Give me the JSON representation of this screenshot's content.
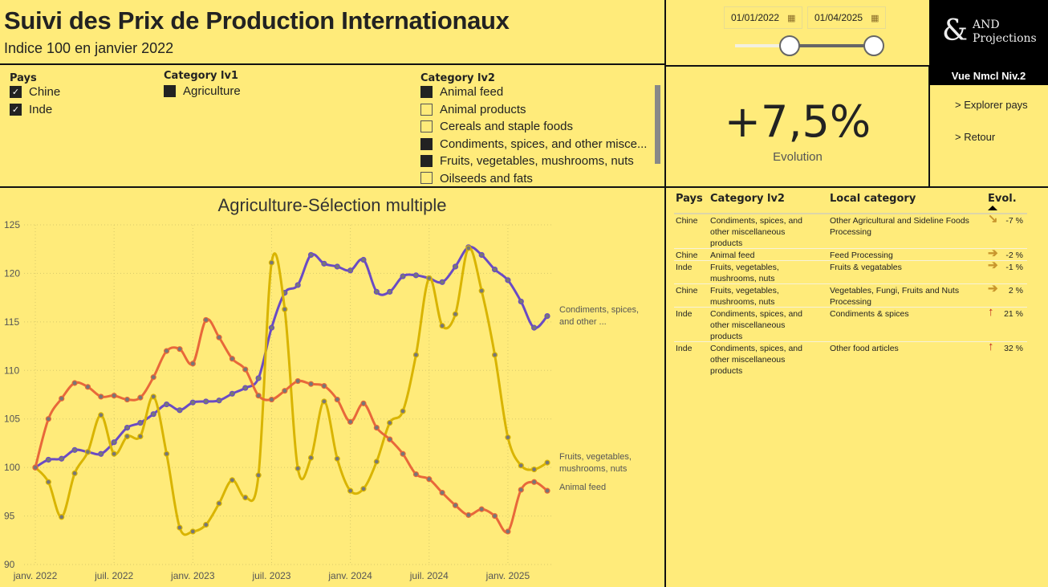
{
  "header": {
    "title": "Suivi des Prix de Production Internationaux",
    "subtitle": "Indice 100 en janvier 2022"
  },
  "filters": {
    "pays": {
      "label": "Pays",
      "items": [
        {
          "label": "Chine",
          "checked": true
        },
        {
          "label": "Inde",
          "checked": true
        }
      ]
    },
    "cat1": {
      "label": "Category lv1",
      "items": [
        {
          "label": "Agriculture",
          "checked": true
        }
      ]
    },
    "cat2": {
      "label": "Category lv2",
      "items": [
        {
          "label": "Animal feed",
          "checked": true
        },
        {
          "label": "Animal products",
          "checked": false
        },
        {
          "label": "Cereals and staple foods",
          "checked": false
        },
        {
          "label": "Condiments, spices, and other misce...",
          "checked": true
        },
        {
          "label": "Fruits, vegetables, mushrooms, nuts",
          "checked": true
        },
        {
          "label": "Oilseeds and fats",
          "checked": false
        }
      ]
    }
  },
  "dates": {
    "start": "01/01/2022",
    "end": "01/04/2025"
  },
  "logo": {
    "symbol": "&",
    "line1": "AND",
    "line2": "Projections"
  },
  "nav": {
    "title": "Vue Nmcl Niv.2",
    "explore": "> Explorer pays",
    "back": "> Retour"
  },
  "kpi": {
    "value": "+7,5%",
    "label": "Evolution"
  },
  "table": {
    "headers": {
      "pays": "Pays",
      "cat": "Category lv2",
      "local": "Local category",
      "evol": "Evol."
    },
    "rows": [
      {
        "pays": "Chine",
        "cat": "Condiments, spices, and other miscellaneous products",
        "local": "Other Agricultural and Sideline Foods Processing",
        "evol": "-7 %",
        "arrow": "down-right"
      },
      {
        "pays": "Chine",
        "cat": "Animal feed",
        "local": "Feed Processing",
        "evol": "-2 %",
        "arrow": "right"
      },
      {
        "pays": "Inde",
        "cat": "Fruits, vegetables, mushrooms, nuts",
        "local": "Fruits & vegatables",
        "evol": "-1 %",
        "arrow": "right"
      },
      {
        "pays": "Chine",
        "cat": "Fruits, vegetables, mushrooms, nuts",
        "local": "Vegetables, Fungi, Fruits and Nuts Processing",
        "evol": "2 %",
        "arrow": "right"
      },
      {
        "pays": "Inde",
        "cat": "Condiments, spices, and other miscellaneous products",
        "local": "Condiments & spices",
        "evol": "21 %",
        "arrow": "up"
      },
      {
        "pays": "Inde",
        "cat": "Condiments, spices, and other miscellaneous products",
        "local": "Other food articles",
        "evol": "32 %",
        "arrow": "up"
      }
    ]
  },
  "chart_data": {
    "type": "line",
    "title": "Agriculture-Sélection multiple",
    "ylim": [
      90,
      125
    ],
    "yticks": [
      90,
      95,
      100,
      105,
      110,
      115,
      120,
      125
    ],
    "xticks": [
      "janv. 2022",
      "juil. 2022",
      "janv. 2023",
      "juil. 2023",
      "janv. 2024",
      "juil. 2024",
      "janv. 2025"
    ],
    "x_start": "2022-01",
    "n_months": 40,
    "series": [
      {
        "name": "Condiments, spices, and other ...",
        "color": "#6A4BC4",
        "values": [
          100,
          100.8,
          100.9,
          101.8,
          101.6,
          101.4,
          102.6,
          104.1,
          104.6,
          105.5,
          106.5,
          105.9,
          106.7,
          106.8,
          106.9,
          107.6,
          108.2,
          109.2,
          114.4,
          118.0,
          118.8,
          121.9,
          121.0,
          120.7,
          120.3,
          121.4,
          118.1,
          118.1,
          119.7,
          119.8,
          119.5,
          119.1,
          120.7,
          122.7,
          121.9,
          120.4,
          119.3,
          117.1,
          114.4,
          115.6
        ]
      },
      {
        "name": "Fruits, vegetables, mushrooms, nuts",
        "color": "#D9B400",
        "values": [
          100,
          98.5,
          94.9,
          99.4,
          101.6,
          105.4,
          101.4,
          103.2,
          103.2,
          107.3,
          101.4,
          93.8,
          93.4,
          94.1,
          96.3,
          98.7,
          96.9,
          99.2,
          121.1,
          116.3,
          99.9,
          101.0,
          106.8,
          100.9,
          97.6,
          97.8,
          100.6,
          104.6,
          105.8,
          111.6,
          119.5,
          114.6,
          115.8,
          122.6,
          118.2,
          111.6,
          103.1,
          100.2,
          99.8,
          100.5
        ]
      },
      {
        "name": "Animal feed",
        "color": "#E8683A",
        "values": [
          100,
          105.0,
          107.1,
          108.7,
          108.3,
          107.3,
          107.4,
          107.0,
          107.2,
          109.3,
          112.0,
          112.2,
          110.7,
          115.2,
          113.4,
          111.2,
          110.1,
          107.4,
          107.0,
          107.9,
          108.9,
          108.6,
          108.4,
          107.0,
          104.7,
          106.6,
          104.1,
          102.9,
          101.4,
          99.3,
          98.8,
          97.4,
          96.1,
          95.1,
          95.7,
          95.0,
          93.4,
          97.7,
          98.5,
          97.6
        ]
      }
    ]
  }
}
